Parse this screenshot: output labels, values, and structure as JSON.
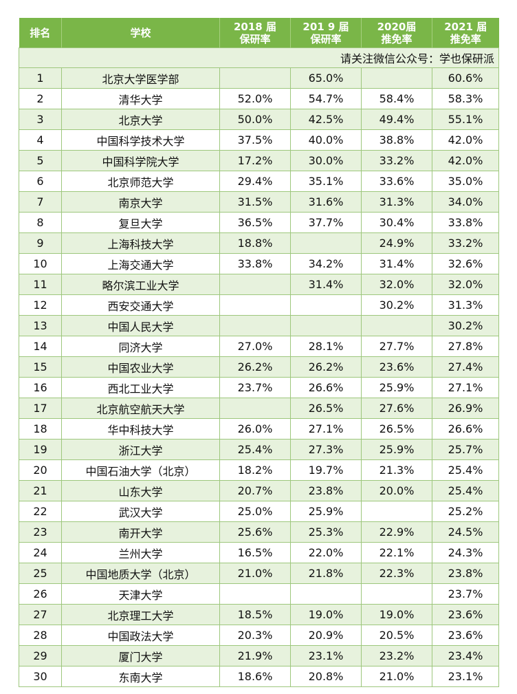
{
  "header": {
    "rank": "排名",
    "school": "学校",
    "y2018": [
      "2018 届",
      "保研率"
    ],
    "y2019": [
      "201 9 届",
      "保研率"
    ],
    "y2020": [
      "2020届",
      "推免率"
    ],
    "y2021": [
      "2021 届",
      "推免率"
    ]
  },
  "notice": "请关注微信公众号：学也保研派",
  "rows": [
    {
      "rank": "1",
      "school": "北京大学医学部",
      "r2018": "",
      "r2019": "65.0%",
      "r2020": "",
      "r2021": "60.6%"
    },
    {
      "rank": "2",
      "school": "清华大学",
      "r2018": "52.0%",
      "r2019": "54.7%",
      "r2020": "58.4%",
      "r2021": "58.3%"
    },
    {
      "rank": "3",
      "school": "北京大学",
      "r2018": "50.0%",
      "r2019": "42.5%",
      "r2020": "49.4%",
      "r2021": "55.1%"
    },
    {
      "rank": "4",
      "school": "中国科学技术大学",
      "r2018": "37.5%",
      "r2019": "40.0%",
      "r2020": "38.8%",
      "r2021": "42.0%"
    },
    {
      "rank": "5",
      "school": "中国科学院大学",
      "r2018": "17.2%",
      "r2019": "30.0%",
      "r2020": "33.2%",
      "r2021": "42.0%"
    },
    {
      "rank": "6",
      "school": "北京师范大学",
      "r2018": "29.4%",
      "r2019": "35.1%",
      "r2020": "33.6%",
      "r2021": "35.0%"
    },
    {
      "rank": "7",
      "school": "南京大学",
      "r2018": "31.5%",
      "r2019": "31.6%",
      "r2020": "31.3%",
      "r2021": "34.0%"
    },
    {
      "rank": "8",
      "school": "复旦大学",
      "r2018": "36.5%",
      "r2019": "37.7%",
      "r2020": "30.4%",
      "r2021": "33.8%"
    },
    {
      "rank": "9",
      "school": "上海科技大学",
      "r2018": "18.8%",
      "r2019": "",
      "r2020": "24.9%",
      "r2021": "33.2%"
    },
    {
      "rank": "10",
      "school": "上海交通大学",
      "r2018": "33.8%",
      "r2019": "34.2%",
      "r2020": "31.4%",
      "r2021": "32.6%"
    },
    {
      "rank": "11",
      "school": "略尔滨工业大学",
      "r2018": "",
      "r2019": "31.4%",
      "r2020": "32.0%",
      "r2021": "32.0%"
    },
    {
      "rank": "12",
      "school": "西安交通大学",
      "r2018": "",
      "r2019": "",
      "r2020": "30.2%",
      "r2021": "31.3%"
    },
    {
      "rank": "13",
      "school": "中国人民大学",
      "r2018": "",
      "r2019": "",
      "r2020": "",
      "r2021": "30.2%"
    },
    {
      "rank": "14",
      "school": "同济大学",
      "r2018": "27.0%",
      "r2019": "28.1%",
      "r2020": "27.7%",
      "r2021": "27.8%"
    },
    {
      "rank": "15",
      "school": "中国农业大学",
      "r2018": "26.2%",
      "r2019": "26.2%",
      "r2020": "23.6%",
      "r2021": "27.4%"
    },
    {
      "rank": "16",
      "school": "西北工业大学",
      "r2018": "23.7%",
      "r2019": "26.6%",
      "r2020": "25.9%",
      "r2021": "27.1%"
    },
    {
      "rank": "17",
      "school": "北京航空航天大学",
      "r2018": "",
      "r2019": "26.5%",
      "r2020": "27.6%",
      "r2021": "26.9%"
    },
    {
      "rank": "18",
      "school": "华中科技大学",
      "r2018": "26.0%",
      "r2019": "27.1%",
      "r2020": "26.5%",
      "r2021": "26.6%"
    },
    {
      "rank": "19",
      "school": "浙江大学",
      "r2018": "25.4%",
      "r2019": "27.3%",
      "r2020": "25.9%",
      "r2021": "25.7%"
    },
    {
      "rank": "20",
      "school": "中国石油大学（北京）",
      "r2018": "18.2%",
      "r2019": "19.7%",
      "r2020": "21.3%",
      "r2021": "25.4%"
    },
    {
      "rank": "21",
      "school": "山东大学",
      "r2018": "20.7%",
      "r2019": "23.8%",
      "r2020": "20.0%",
      "r2021": "25.4%"
    },
    {
      "rank": "22",
      "school": "武汉大学",
      "r2018": "25.0%",
      "r2019": "25.9%",
      "r2020": "",
      "r2021": "25.2%"
    },
    {
      "rank": "23",
      "school": "南开大学",
      "r2018": "25.6%",
      "r2019": "25.3%",
      "r2020": "22.9%",
      "r2021": "24.5%"
    },
    {
      "rank": "24",
      "school": "兰州大学",
      "r2018": "16.5%",
      "r2019": "22.0%",
      "r2020": "22.1%",
      "r2021": "24.3%"
    },
    {
      "rank": "25",
      "school": "中国地质大学（北京）",
      "r2018": "21.0%",
      "r2019": "21.8%",
      "r2020": "22.3%",
      "r2021": "23.8%"
    },
    {
      "rank": "26",
      "school": "天津大学",
      "r2018": "",
      "r2019": "",
      "r2020": "",
      "r2021": "23.7%"
    },
    {
      "rank": "27",
      "school": "北京理工大学",
      "r2018": "18.5%",
      "r2019": "19.0%",
      "r2020": "19.0%",
      "r2021": "23.6%"
    },
    {
      "rank": "28",
      "school": "中国政法大学",
      "r2018": "20.3%",
      "r2019": "20.9%",
      "r2020": "20.5%",
      "r2021": "23.6%"
    },
    {
      "rank": "29",
      "school": "厦门大学",
      "r2018": "21.9%",
      "r2019": "23.1%",
      "r2020": "23.2%",
      "r2021": "23.4%"
    },
    {
      "rank": "30",
      "school": "东南大学",
      "r2018": "18.6%",
      "r2019": "20.8%",
      "r2020": "21.0%",
      "r2021": "23.1%"
    }
  ]
}
